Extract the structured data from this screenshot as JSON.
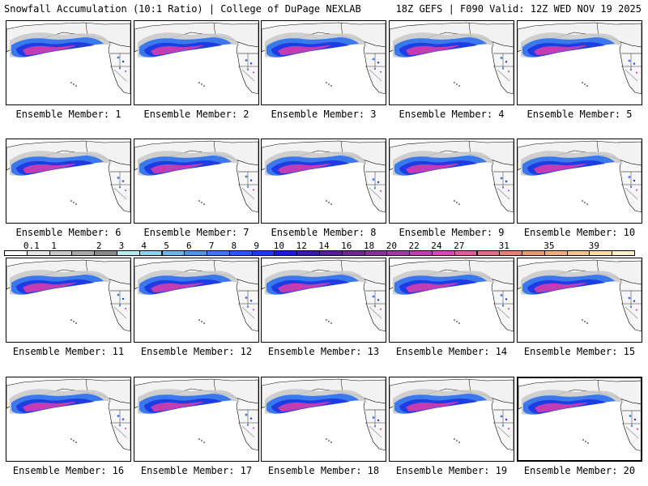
{
  "header": {
    "title": "Snowfall Accumulation (10:1 Ratio) | College of DuPage NEXLAB",
    "run_info": "18Z GEFS | F090 Valid: 12Z WED NOV 19 2025"
  },
  "members": [
    {
      "label": "Ensemble Member: 1"
    },
    {
      "label": "Ensemble Member: 2"
    },
    {
      "label": "Ensemble Member: 3"
    },
    {
      "label": "Ensemble Member: 4"
    },
    {
      "label": "Ensemble Member: 5"
    },
    {
      "label": "Ensemble Member: 6"
    },
    {
      "label": "Ensemble Member: 7"
    },
    {
      "label": "Ensemble Member: 8"
    },
    {
      "label": "Ensemble Member: 9"
    },
    {
      "label": "Ensemble Member: 10"
    },
    {
      "label": "Ensemble Member: 11"
    },
    {
      "label": "Ensemble Member: 12"
    },
    {
      "label": "Ensemble Member: 13"
    },
    {
      "label": "Ensemble Member: 14"
    },
    {
      "label": "Ensemble Member: 15"
    },
    {
      "label": "Ensemble Member: 16"
    },
    {
      "label": "Ensemble Member: 17"
    },
    {
      "label": "Ensemble Member: 18"
    },
    {
      "label": "Ensemble Member: 19"
    },
    {
      "label": "Ensemble Member: 20"
    }
  ],
  "colorbar": {
    "labels": [
      "0.1",
      "1",
      "2",
      "3",
      "4",
      "5",
      "6",
      "7",
      "8",
      "9",
      "10",
      "12",
      "14",
      "16",
      "18",
      "20",
      "22",
      "24",
      "27",
      "31",
      "35",
      "39"
    ],
    "colors": [
      "#ffffff",
      "#e6e6e6",
      "#c8c8c8",
      "#a8a8a8",
      "#8a8a8a",
      "#b4ecf0",
      "#8cd2f0",
      "#6ab4ef",
      "#4a96ee",
      "#3a78ec",
      "#2a58e8",
      "#1e3ce4",
      "#1a1ec8",
      "#3a1aa8",
      "#561c9a",
      "#72229a",
      "#8e2aa2",
      "#a834ac",
      "#c23cb4",
      "#d648b8",
      "#e05a9e",
      "#e46c8a",
      "#e88078",
      "#ec9670",
      "#f0ac78",
      "#f4c48c",
      "#f8dca4",
      "#fcf0c8"
    ]
  },
  "colors": {
    "light_snow": "#c8c8c8",
    "moderate_snow": "#3a78ec",
    "heavy_snow": "#1e3ce4",
    "extreme_snow": "#c23cb4"
  }
}
